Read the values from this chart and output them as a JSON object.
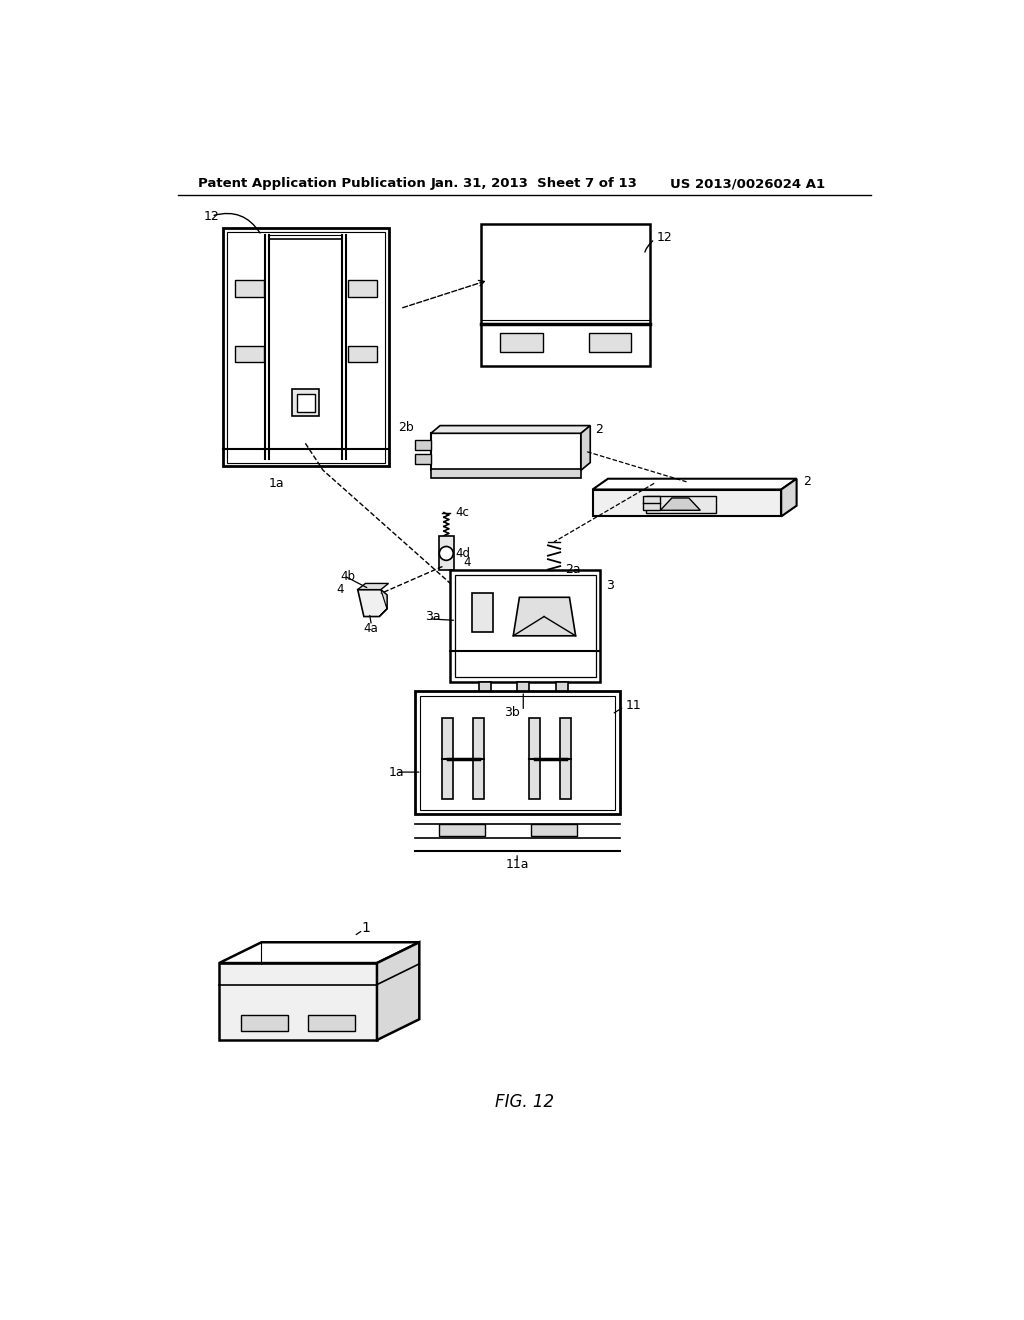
{
  "title": "FIG. 12",
  "header_left": "Patent Application Publication",
  "header_center": "Jan. 31, 2013  Sheet 7 of 13",
  "header_right": "US 2013/0026024 A1",
  "background_color": "#ffffff",
  "line_color": "#000000",
  "gray_color": "#cccccc",
  "light_gray": "#e8e8e8"
}
